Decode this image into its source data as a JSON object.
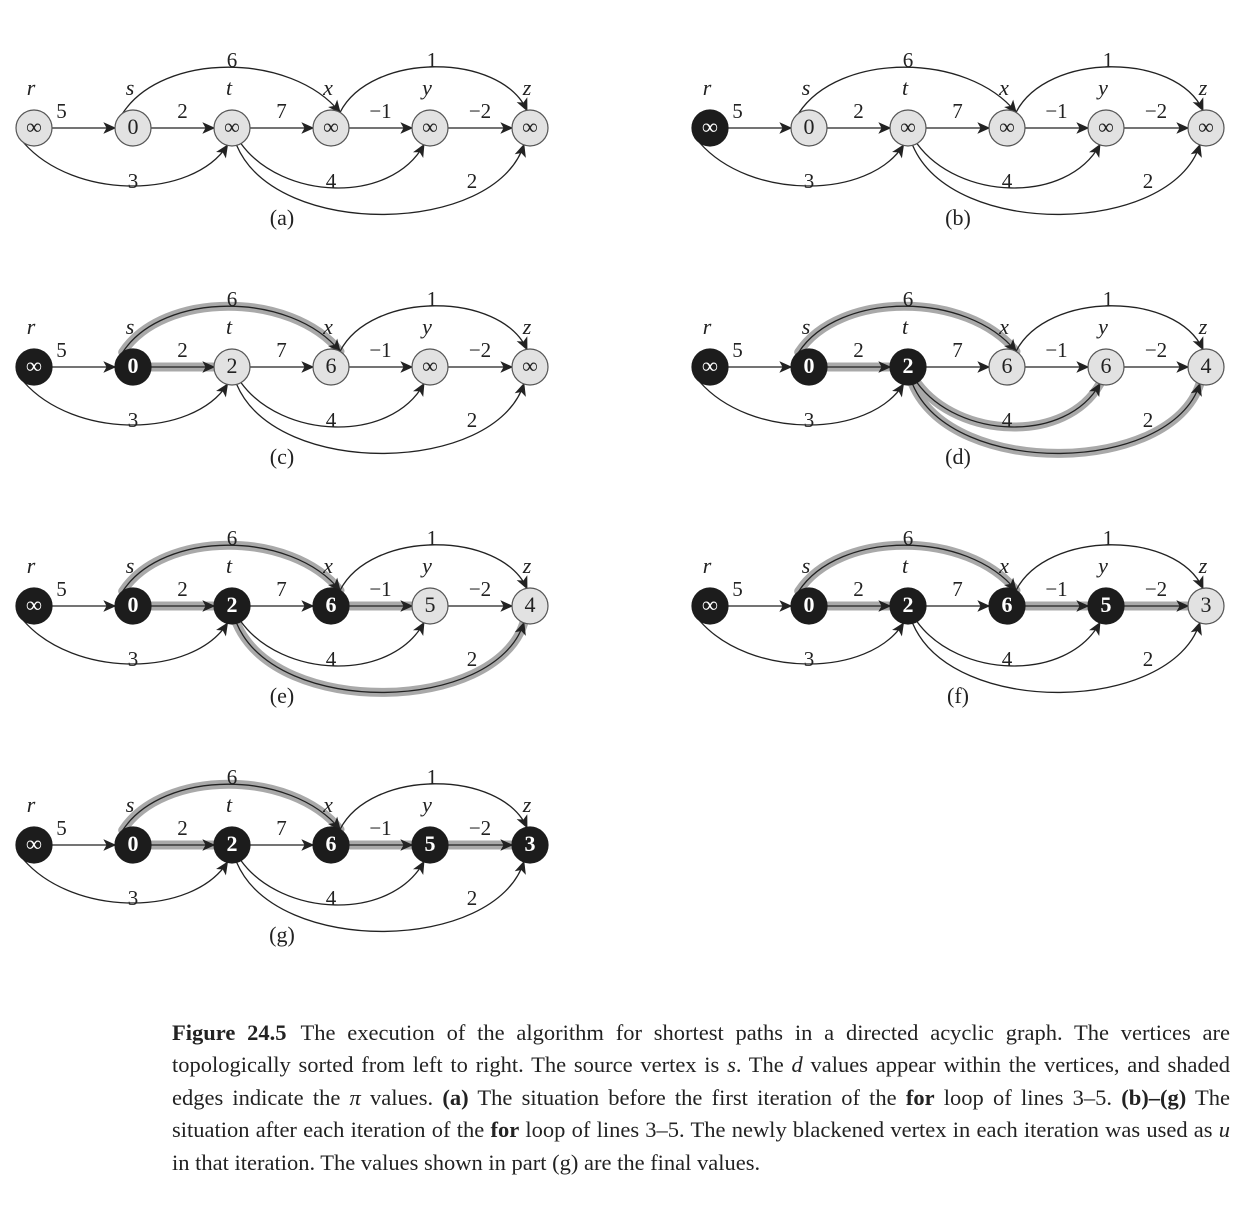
{
  "vertices": [
    {
      "id": "r",
      "label": "r"
    },
    {
      "id": "s",
      "label": "s"
    },
    {
      "id": "t",
      "label": "t"
    },
    {
      "id": "x",
      "label": "x"
    },
    {
      "id": "y",
      "label": "y"
    },
    {
      "id": "z",
      "label": "z"
    }
  ],
  "edges": [
    {
      "from": "r",
      "to": "s",
      "weight": "5"
    },
    {
      "from": "s",
      "to": "t",
      "weight": "2"
    },
    {
      "from": "t",
      "to": "x",
      "weight": "7"
    },
    {
      "from": "x",
      "to": "y",
      "weight": "−1"
    },
    {
      "from": "y",
      "to": "z",
      "weight": "−2"
    },
    {
      "from": "s",
      "to": "x",
      "weight": "6"
    },
    {
      "from": "x",
      "to": "z",
      "weight": "1"
    },
    {
      "from": "r",
      "to": "t",
      "weight": "3"
    },
    {
      "from": "t",
      "to": "y",
      "weight": "4"
    },
    {
      "from": "t",
      "to": "z",
      "weight": "2"
    }
  ],
  "panels": [
    {
      "label": "(a)",
      "d": {
        "r": "∞",
        "s": "0",
        "t": "∞",
        "x": "∞",
        "y": "∞",
        "z": "∞"
      },
      "black": [],
      "shaded": []
    },
    {
      "label": "(b)",
      "d": {
        "r": "∞",
        "s": "0",
        "t": "∞",
        "x": "∞",
        "y": "∞",
        "z": "∞"
      },
      "black": [
        "r"
      ],
      "shaded": []
    },
    {
      "label": "(c)",
      "d": {
        "r": "∞",
        "s": "0",
        "t": "2",
        "x": "6",
        "y": "∞",
        "z": "∞"
      },
      "black": [
        "r",
        "s"
      ],
      "shaded": [
        "s-t",
        "s-x"
      ]
    },
    {
      "label": "(d)",
      "d": {
        "r": "∞",
        "s": "0",
        "t": "2",
        "x": "6",
        "y": "6",
        "z": "4"
      },
      "black": [
        "r",
        "s",
        "t"
      ],
      "shaded": [
        "s-t",
        "s-x",
        "t-y",
        "t-z"
      ]
    },
    {
      "label": "(e)",
      "d": {
        "r": "∞",
        "s": "0",
        "t": "2",
        "x": "6",
        "y": "5",
        "z": "4"
      },
      "black": [
        "r",
        "s",
        "t",
        "x"
      ],
      "shaded": [
        "s-t",
        "s-x",
        "x-y",
        "t-z"
      ]
    },
    {
      "label": "(f)",
      "d": {
        "r": "∞",
        "s": "0",
        "t": "2",
        "x": "6",
        "y": "5",
        "z": "3"
      },
      "black": [
        "r",
        "s",
        "t",
        "x",
        "y"
      ],
      "shaded": [
        "s-t",
        "s-x",
        "x-y",
        "y-z"
      ]
    },
    {
      "label": "(g)",
      "d": {
        "r": "∞",
        "s": "0",
        "t": "2",
        "x": "6",
        "y": "5",
        "z": "3"
      },
      "black": [
        "r",
        "s",
        "t",
        "x",
        "y",
        "z"
      ],
      "shaded": [
        "s-t",
        "s-x",
        "x-y",
        "y-z"
      ]
    }
  ],
  "colors": {
    "white_vertex": "#e2e2e2",
    "black_vertex": "#1c1c1c",
    "shade": "#a9a9a9",
    "ink": "#222222"
  },
  "caption": {
    "figure_number": "Figure 24.5",
    "p1": "The execution of the algorithm for shortest paths in a directed acyclic graph. The vertices are topologically sorted from left to right. The source vertex is ",
    "source": "s",
    "p2": ". The ",
    "dvar": "d",
    "p3": " values appear within the vertices, and shaded edges indicate the ",
    "pi": "π",
    "p4": " values. ",
    "a": "(a)",
    "p5": " The situation before the first iteration of the ",
    "for1": "for",
    "p6": " loop of lines 3–5. ",
    "bg": "(b)–(g)",
    "p7": " The situation after each iteration of the ",
    "for2": "for",
    "p8": " loop of lines 3–5. The newly blackened vertex in each iteration was used as ",
    "u": "u",
    "p9": " in that iteration. The values shown in part (g) are the final values."
  }
}
